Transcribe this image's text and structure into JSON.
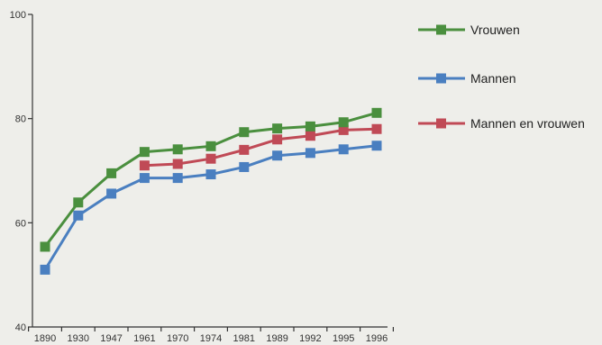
{
  "chart_data": {
    "type": "line",
    "x": [
      "1890",
      "1930",
      "1947",
      "1961",
      "1970",
      "1974",
      "1981",
      "1989",
      "1992",
      "1995",
      "1996"
    ],
    "ylim": [
      40,
      100
    ],
    "yticks": [
      40,
      60,
      80,
      100
    ],
    "grid": false,
    "legend_position": "right",
    "series": [
      {
        "name": "Vrouwen",
        "color": "#4a8f3e",
        "values": [
          55.4,
          63.9,
          69.5,
          73.6,
          74.1,
          74.7,
          77.4,
          78.1,
          78.5,
          79.3,
          81.1
        ]
      },
      {
        "name": "Mannen",
        "color": "#4a7fc0",
        "values": [
          51.0,
          61.4,
          65.6,
          68.6,
          68.6,
          69.3,
          70.7,
          72.9,
          73.4,
          74.1,
          74.8
        ]
      },
      {
        "name": "Mannen en vrouwen",
        "color": "#c04a56",
        "values": [
          null,
          null,
          null,
          71.0,
          71.3,
          72.3,
          74.0,
          76.0,
          76.7,
          77.8,
          78.0
        ]
      }
    ]
  }
}
